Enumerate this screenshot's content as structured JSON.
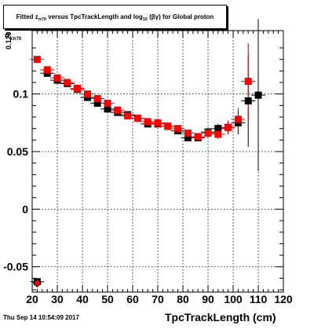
{
  "title": {
    "prefix": "Fitted",
    "z": "z",
    "z_sub": "π70",
    "middle": "versus TpcTrackLength and log",
    "log_sub": "10",
    "suffix": "(βγ) for Global proton"
  },
  "footer": {
    "timestamp": "Thu Sep 14 10:54:09 2017"
  },
  "chart_data": {
    "type": "scatter",
    "xlabel": "TpcTrackLength (cm)",
    "ylabel": "σ",
    "ylabel_sub": "zπ70",
    "xlim": [
      20,
      120
    ],
    "ylim": [
      -0.072,
      0.155
    ],
    "xticks": [
      20,
      30,
      40,
      50,
      60,
      70,
      80,
      90,
      100,
      110,
      120
    ],
    "yticks": [
      -0.05,
      0,
      0.05,
      0.1
    ],
    "ytick_labels": [
      "-0.05",
      "0",
      "0.05",
      "0.1"
    ],
    "top_tick_label": "0.120",
    "grid": true,
    "colors": {
      "series_black": "#000000",
      "series_red": "#ff0000",
      "errbar_red": "#b00000"
    },
    "series": [
      {
        "marker": "square",
        "color": "#000000",
        "points": [
          {
            "x": 22,
            "y": -0.063,
            "err": 0.002
          },
          {
            "x": 26,
            "y": 0.118,
            "err": 0.002
          },
          {
            "x": 30,
            "y": 0.112,
            "err": 0.002
          },
          {
            "x": 34,
            "y": 0.109,
            "err": 0.002
          },
          {
            "x": 38,
            "y": 0.104,
            "err": 0.002
          },
          {
            "x": 42,
            "y": 0.097,
            "err": 0.002
          },
          {
            "x": 46,
            "y": 0.092,
            "err": 0.002
          },
          {
            "x": 50,
            "y": 0.087,
            "err": 0.002
          },
          {
            "x": 54,
            "y": 0.084,
            "err": 0.002
          },
          {
            "x": 58,
            "y": 0.082,
            "err": 0.002
          },
          {
            "x": 62,
            "y": 0.079,
            "err": 0.002
          },
          {
            "x": 66,
            "y": 0.074,
            "err": 0.002
          },
          {
            "x": 70,
            "y": 0.074,
            "err": 0.002
          },
          {
            "x": 74,
            "y": 0.072,
            "err": 0.002
          },
          {
            "x": 78,
            "y": 0.068,
            "err": 0.002
          },
          {
            "x": 82,
            "y": 0.062,
            "err": 0.003
          },
          {
            "x": 86,
            "y": 0.062,
            "err": 0.003
          },
          {
            "x": 90,
            "y": 0.067,
            "err": 0.004
          },
          {
            "x": 94,
            "y": 0.07,
            "err": 0.004
          },
          {
            "x": 98,
            "y": 0.071,
            "err": 0.005
          },
          {
            "x": 102,
            "y": 0.075,
            "err": 0.01
          },
          {
            "x": 106,
            "y": 0.094,
            "err": 0.04
          },
          {
            "x": 110,
            "y": 0.099,
            "err": 0.066
          }
        ]
      },
      {
        "marker": "square",
        "color": "#ff0000",
        "points": [
          {
            "x": 22,
            "y": 0.13,
            "err": 0.002
          },
          {
            "x": 26,
            "y": 0.121,
            "err": 0.002
          },
          {
            "x": 30,
            "y": 0.114,
            "err": 0.002
          },
          {
            "x": 34,
            "y": 0.11,
            "err": 0.002
          },
          {
            "x": 38,
            "y": 0.105,
            "err": 0.002
          },
          {
            "x": 42,
            "y": 0.1,
            "err": 0.002
          },
          {
            "x": 46,
            "y": 0.096,
            "err": 0.002
          },
          {
            "x": 50,
            "y": 0.092,
            "err": 0.002
          },
          {
            "x": 54,
            "y": 0.086,
            "err": 0.002
          },
          {
            "x": 58,
            "y": 0.081,
            "err": 0.002
          },
          {
            "x": 62,
            "y": 0.079,
            "err": 0.002
          },
          {
            "x": 66,
            "y": 0.076,
            "err": 0.002
          },
          {
            "x": 70,
            "y": 0.075,
            "err": 0.002
          },
          {
            "x": 74,
            "y": 0.072,
            "err": 0.002
          },
          {
            "x": 78,
            "y": 0.07,
            "err": 0.002
          },
          {
            "x": 82,
            "y": 0.066,
            "err": 0.003
          },
          {
            "x": 86,
            "y": 0.063,
            "err": 0.003
          },
          {
            "x": 90,
            "y": 0.066,
            "err": 0.004
          },
          {
            "x": 94,
            "y": 0.065,
            "err": 0.004
          },
          {
            "x": 98,
            "y": 0.071,
            "err": 0.006
          },
          {
            "x": 102,
            "y": 0.078,
            "err": 0.01
          },
          {
            "x": 106,
            "y": 0.111,
            "err": 0.033
          }
        ]
      }
    ],
    "extra_markers": [
      {
        "x": 22,
        "y": -0.064,
        "marker": "diamond",
        "color": "#ff0000"
      }
    ]
  }
}
